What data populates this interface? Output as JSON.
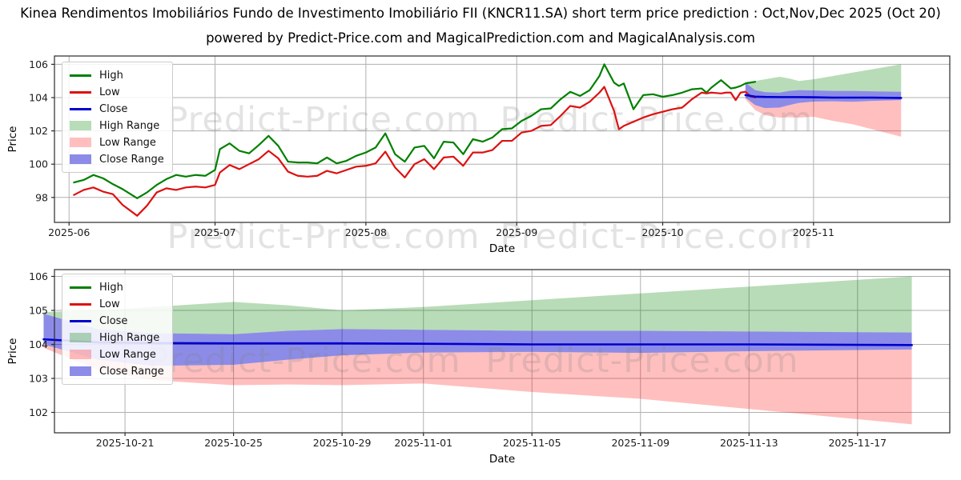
{
  "header": {
    "title": "Kinea Rendimentos Imobiliários Fundo de Investimento Imobiliário FII (KNCR11.SA) short term price prediction : Oct,Nov,Dec 2025 (Oct 20)",
    "subtitle": "powered by Predict-Price.com and MagicalPrediction.com and MagicalAnalysis.com"
  },
  "watermark_text": "Predict-Price.com",
  "colors": {
    "high_line": "#008000",
    "low_line": "#dd1111",
    "close_line": "#0000cd",
    "high_band": "rgba(0,128,0,0.28)",
    "low_band": "rgba(255,0,0,0.25)",
    "close_band": "rgba(0,0,205,0.45)",
    "grid": "#b0b0b0",
    "spine": "#2a2a2a",
    "tick_text": "#1c1c1c",
    "watermark": "#808080"
  },
  "legend": {
    "items": [
      {
        "id": "high",
        "label": "High",
        "swatch": "line",
        "color": "#008000"
      },
      {
        "id": "low",
        "label": "Low",
        "swatch": "line",
        "color": "#dd1111"
      },
      {
        "id": "close",
        "label": "Close",
        "swatch": "line",
        "color": "#0000cd"
      },
      {
        "id": "high-range",
        "label": "High Range",
        "swatch": "band",
        "color": "rgba(0,128,0,0.28)"
      },
      {
        "id": "low-range",
        "label": "Low Range",
        "swatch": "band",
        "color": "rgba(255,0,0,0.25)"
      },
      {
        "id": "close-range",
        "label": "Close Range",
        "swatch": "band",
        "color": "rgba(0,0,205,0.45)"
      }
    ]
  },
  "chart_data": [
    {
      "type": "line",
      "name": "history-with-forecast",
      "xlabel": "Date",
      "ylabel": "Price",
      "x_unit": "days_since_2025-06-01",
      "xlim": [
        -3,
        181
      ],
      "ylim": [
        96.5,
        106.5
      ],
      "grid": true,
      "legend_position": "upper left",
      "xticks": [
        {
          "v": 0,
          "label": "2025-06"
        },
        {
          "v": 30,
          "label": "2025-07"
        },
        {
          "v": 61,
          "label": "2025-08"
        },
        {
          "v": 92,
          "label": "2025-09"
        },
        {
          "v": 122,
          "label": "2025-10"
        },
        {
          "v": 153,
          "label": "2025-11"
        }
      ],
      "yticks": [
        98,
        100,
        102,
        104,
        106
      ],
      "history": {
        "series": [
          "day",
          "high",
          "low"
        ],
        "points": [
          [
            1,
            98.9,
            98.15
          ],
          [
            3,
            99.05,
            98.45
          ],
          [
            5,
            99.35,
            98.6
          ],
          [
            7,
            99.15,
            98.35
          ],
          [
            9,
            98.8,
            98.2
          ],
          [
            11,
            98.5,
            97.55
          ],
          [
            14,
            97.95,
            96.9
          ],
          [
            16,
            98.3,
            97.5
          ],
          [
            18,
            98.75,
            98.3
          ],
          [
            20,
            99.1,
            98.55
          ],
          [
            22,
            99.35,
            98.45
          ],
          [
            24,
            99.25,
            98.6
          ],
          [
            26,
            99.35,
            98.65
          ],
          [
            28,
            99.3,
            98.6
          ],
          [
            30,
            99.65,
            98.75
          ],
          [
            31,
            100.9,
            99.5
          ],
          [
            33,
            101.25,
            99.95
          ],
          [
            35,
            100.8,
            99.7
          ],
          [
            37,
            100.65,
            100.0
          ],
          [
            39,
            101.15,
            100.3
          ],
          [
            41,
            101.7,
            100.8
          ],
          [
            43,
            101.1,
            100.35
          ],
          [
            45,
            100.15,
            99.55
          ],
          [
            47,
            100.1,
            99.3
          ],
          [
            49,
            100.1,
            99.25
          ],
          [
            51,
            100.05,
            99.3
          ],
          [
            53,
            100.4,
            99.6
          ],
          [
            55,
            100.05,
            99.45
          ],
          [
            57,
            100.2,
            99.65
          ],
          [
            59,
            100.5,
            99.85
          ],
          [
            61,
            100.7,
            99.9
          ],
          [
            63,
            101.0,
            100.05
          ],
          [
            65,
            101.85,
            100.75
          ],
          [
            67,
            100.6,
            99.8
          ],
          [
            69,
            100.15,
            99.2
          ],
          [
            71,
            101.0,
            100.0
          ],
          [
            73,
            101.1,
            100.3
          ],
          [
            75,
            100.35,
            99.7
          ],
          [
            77,
            101.35,
            100.4
          ],
          [
            79,
            101.3,
            100.45
          ],
          [
            81,
            100.6,
            99.9
          ],
          [
            83,
            101.5,
            100.7
          ],
          [
            85,
            101.35,
            100.7
          ],
          [
            87,
            101.6,
            100.85
          ],
          [
            89,
            102.1,
            101.4
          ],
          [
            91,
            102.15,
            101.4
          ],
          [
            93,
            102.6,
            101.9
          ],
          [
            95,
            102.9,
            102.0
          ],
          [
            97,
            103.3,
            102.3
          ],
          [
            99,
            103.35,
            102.35
          ],
          [
            101,
            103.9,
            102.9
          ],
          [
            103,
            104.35,
            103.5
          ],
          [
            105,
            104.1,
            103.4
          ],
          [
            107,
            104.45,
            103.75
          ],
          [
            109,
            105.3,
            104.3
          ],
          [
            110,
            106.0,
            104.65
          ],
          [
            112,
            104.9,
            103.2
          ],
          [
            113,
            104.7,
            102.1
          ],
          [
            114,
            104.85,
            102.3
          ],
          [
            116,
            103.3,
            102.55
          ],
          [
            118,
            104.15,
            102.8
          ],
          [
            120,
            104.2,
            103.0
          ],
          [
            122,
            104.05,
            103.15
          ],
          [
            124,
            104.15,
            103.3
          ],
          [
            126,
            104.3,
            103.4
          ],
          [
            128,
            104.5,
            103.9
          ],
          [
            130,
            104.55,
            104.3
          ],
          [
            131,
            104.3,
            104.25
          ],
          [
            132,
            104.6,
            104.3
          ],
          [
            134,
            105.05,
            104.25
          ],
          [
            135,
            104.8,
            104.3
          ],
          [
            136,
            104.55,
            104.3
          ],
          [
            137,
            104.6,
            103.85
          ],
          [
            138,
            104.7,
            104.3
          ],
          [
            139,
            104.85,
            104.35
          ],
          [
            140,
            104.9,
            104.1
          ],
          [
            141,
            104.95,
            104.0
          ]
        ]
      },
      "prediction_x_offset_days": 139
    },
    {
      "type": "line",
      "name": "forecast-detail",
      "xlabel": "Date",
      "ylabel": "Price",
      "x_unit": "days_since_2025-10-18",
      "xlim": [
        0.4,
        33.4
      ],
      "ylim": [
        101.4,
        106.2
      ],
      "grid": true,
      "legend_position": "upper left",
      "xticks": [
        {
          "v": 3,
          "label": "2025-10-21"
        },
        {
          "v": 7,
          "label": "2025-10-25"
        },
        {
          "v": 11,
          "label": "2025-10-29"
        },
        {
          "v": 14,
          "label": "2025-11-01"
        },
        {
          "v": 18,
          "label": "2025-11-05"
        },
        {
          "v": 22,
          "label": "2025-11-09"
        },
        {
          "v": 26,
          "label": "2025-11-13"
        },
        {
          "v": 30,
          "label": "2025-11-17"
        }
      ],
      "yticks": [
        102,
        103,
        104,
        105,
        106
      ],
      "prediction": {
        "start_date": "2025-10-18",
        "series": [
          "t",
          "high_range_top",
          "close_range_top",
          "close",
          "close_range_bottom",
          "low_range_bottom"
        ],
        "points": [
          [
            0,
            104.95,
            104.9,
            104.15,
            104.0,
            103.9
          ],
          [
            2,
            105.0,
            104.45,
            104.06,
            103.55,
            103.25
          ],
          [
            4,
            105.1,
            104.33,
            104.04,
            103.37,
            102.95
          ],
          [
            7,
            105.25,
            104.3,
            104.03,
            103.4,
            102.8
          ],
          [
            9,
            105.15,
            104.4,
            104.03,
            103.55,
            102.82
          ],
          [
            11,
            105.0,
            104.45,
            104.03,
            103.68,
            102.8
          ],
          [
            14,
            105.1,
            104.43,
            104.02,
            103.76,
            102.85
          ],
          [
            18,
            105.3,
            104.4,
            104.0,
            103.78,
            102.6
          ],
          [
            22,
            105.5,
            104.4,
            104.0,
            103.75,
            102.4
          ],
          [
            26,
            105.7,
            104.38,
            104.0,
            103.8,
            102.1
          ],
          [
            32,
            106.0,
            104.35,
            103.98,
            103.85,
            101.65
          ]
        ]
      }
    }
  ]
}
